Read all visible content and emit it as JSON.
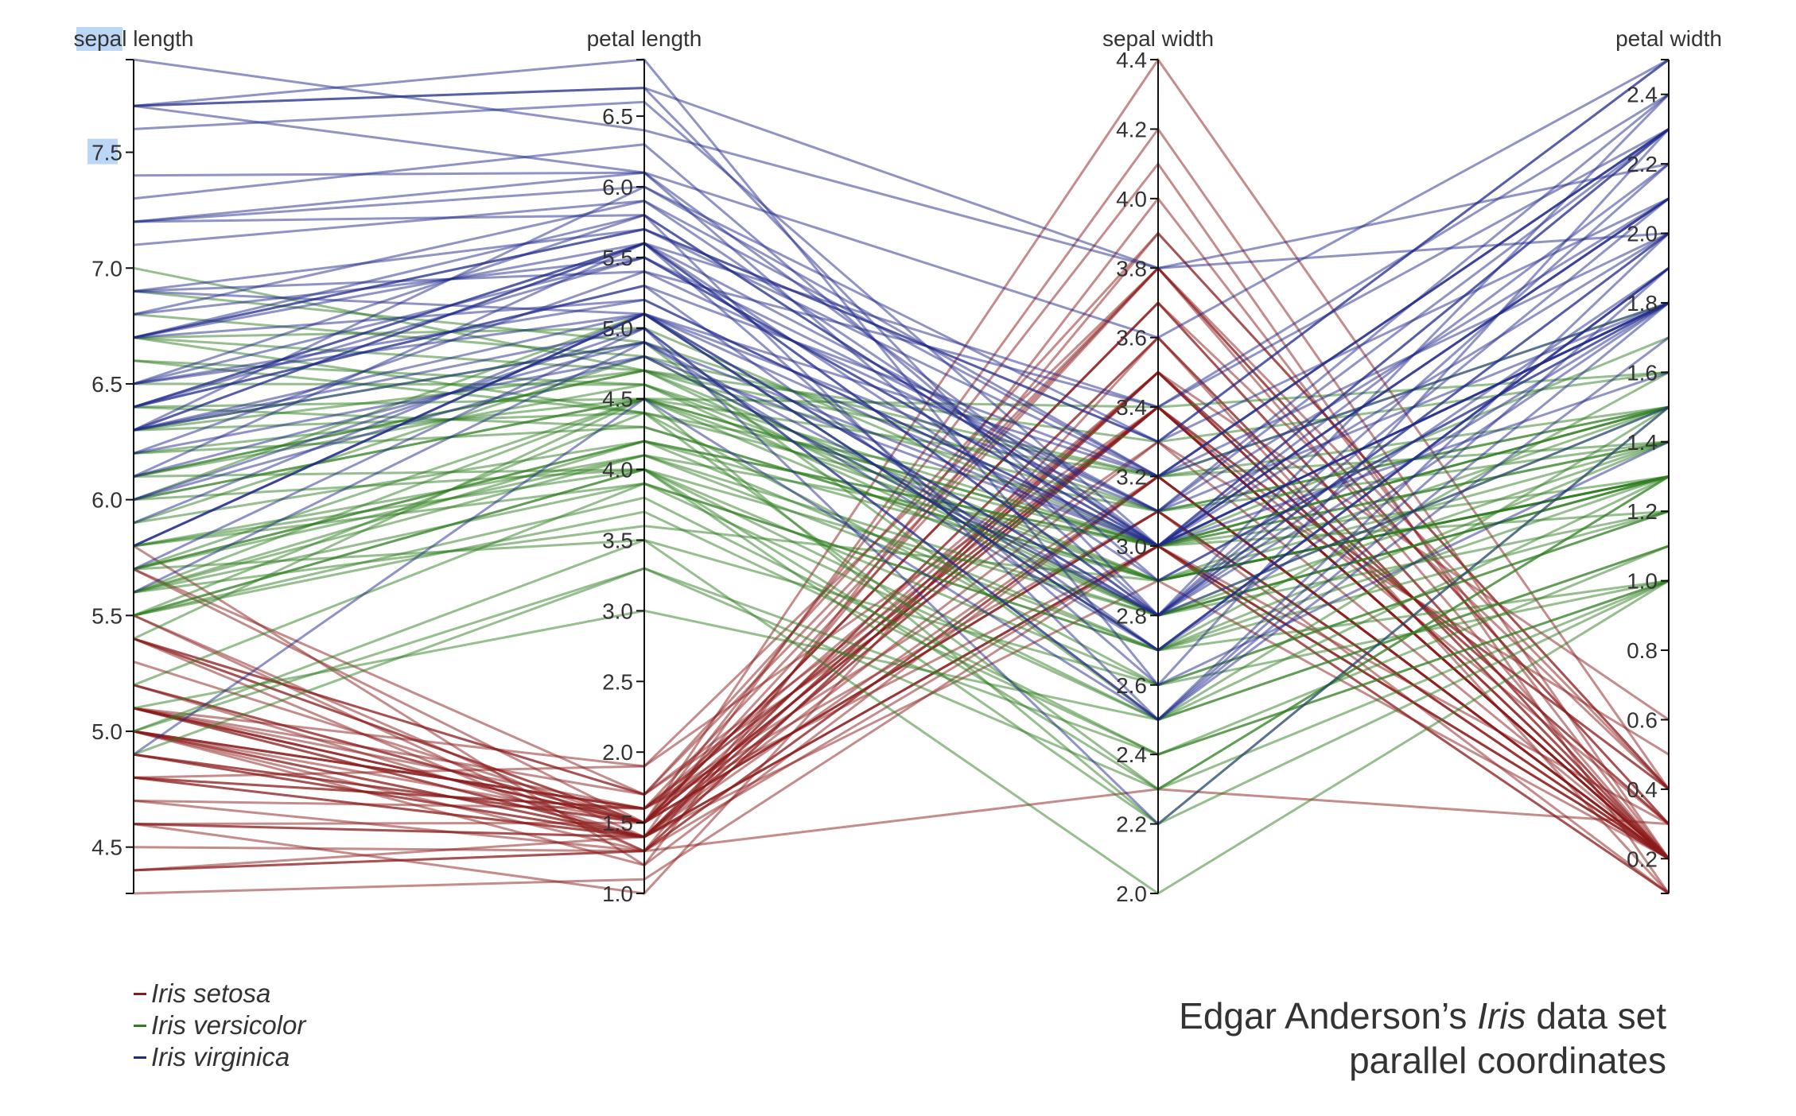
{
  "chart_data": {
    "type": "parallel-coordinates",
    "dimensions": [
      {
        "name": "sepal length",
        "label": "sepal length",
        "domain": [
          4.3,
          7.9
        ],
        "ticks": [
          "4.5",
          "5.0",
          "5.5",
          "6.0",
          "6.5",
          "7.0",
          "7.5"
        ]
      },
      {
        "name": "petal length",
        "label": "petal length",
        "domain": [
          1.0,
          6.9
        ],
        "ticks": [
          "1.0",
          "1.5",
          "2.0",
          "2.5",
          "3.0",
          "3.5",
          "4.0",
          "4.5",
          "5.0",
          "5.5",
          "6.0",
          "6.5"
        ]
      },
      {
        "name": "sepal width",
        "label": "sepal width",
        "domain": [
          2.0,
          4.4
        ],
        "ticks": [
          "2.0",
          "2.2",
          "2.4",
          "2.6",
          "2.8",
          "3.0",
          "3.2",
          "3.4",
          "3.6",
          "3.8",
          "4.0",
          "4.2",
          "4.4"
        ]
      },
      {
        "name": "petal width",
        "label": "petal width",
        "domain": [
          0.1,
          2.5
        ],
        "ticks": [
          "0.2",
          "0.4",
          "0.6",
          "0.8",
          "1.0",
          "1.2",
          "1.4",
          "1.6",
          "1.8",
          "2.0",
          "2.2",
          "2.4"
        ]
      }
    ],
    "series": [
      {
        "name": "Iris setosa",
        "color": "#8b1a1a",
        "values": [
          [
            5.1,
            1.4,
            3.5,
            0.2
          ],
          [
            4.9,
            1.4,
            3.0,
            0.2
          ],
          [
            4.7,
            1.3,
            3.2,
            0.2
          ],
          [
            4.6,
            1.5,
            3.1,
            0.2
          ],
          [
            5.0,
            1.4,
            3.6,
            0.2
          ],
          [
            5.4,
            1.7,
            3.9,
            0.4
          ],
          [
            4.6,
            1.4,
            3.4,
            0.3
          ],
          [
            5.0,
            1.5,
            3.4,
            0.2
          ],
          [
            4.4,
            1.4,
            2.9,
            0.2
          ],
          [
            4.9,
            1.5,
            3.1,
            0.1
          ],
          [
            5.4,
            1.5,
            3.7,
            0.2
          ],
          [
            4.8,
            1.6,
            3.4,
            0.2
          ],
          [
            4.8,
            1.4,
            3.0,
            0.1
          ],
          [
            4.3,
            1.1,
            3.0,
            0.1
          ],
          [
            5.8,
            1.2,
            4.0,
            0.2
          ],
          [
            5.7,
            1.5,
            4.4,
            0.4
          ],
          [
            5.4,
            1.3,
            3.9,
            0.4
          ],
          [
            5.1,
            1.4,
            3.5,
            0.3
          ],
          [
            5.7,
            1.7,
            3.8,
            0.3
          ],
          [
            5.1,
            1.5,
            3.8,
            0.3
          ],
          [
            5.4,
            1.7,
            3.4,
            0.2
          ],
          [
            5.1,
            1.5,
            3.7,
            0.4
          ],
          [
            4.6,
            1.0,
            3.6,
            0.2
          ],
          [
            5.1,
            1.7,
            3.3,
            0.5
          ],
          [
            4.8,
            1.9,
            3.4,
            0.2
          ],
          [
            5.0,
            1.6,
            3.0,
            0.2
          ],
          [
            5.0,
            1.6,
            3.4,
            0.4
          ],
          [
            5.2,
            1.5,
            3.5,
            0.2
          ],
          [
            5.2,
            1.4,
            3.4,
            0.2
          ],
          [
            4.7,
            1.6,
            3.2,
            0.2
          ],
          [
            4.8,
            1.6,
            3.1,
            0.2
          ],
          [
            5.4,
            1.5,
            3.4,
            0.4
          ],
          [
            5.2,
            1.5,
            4.1,
            0.1
          ],
          [
            5.5,
            1.4,
            4.2,
            0.2
          ],
          [
            4.9,
            1.5,
            3.1,
            0.2
          ],
          [
            5.0,
            1.2,
            3.2,
            0.2
          ],
          [
            5.5,
            1.3,
            3.5,
            0.2
          ],
          [
            4.9,
            1.4,
            3.6,
            0.1
          ],
          [
            4.4,
            1.3,
            3.0,
            0.2
          ],
          [
            5.1,
            1.5,
            3.4,
            0.2
          ],
          [
            5.0,
            1.3,
            3.5,
            0.3
          ],
          [
            4.5,
            1.3,
            2.3,
            0.3
          ],
          [
            4.4,
            1.3,
            3.2,
            0.2
          ],
          [
            5.0,
            1.6,
            3.5,
            0.6
          ],
          [
            5.1,
            1.9,
            3.8,
            0.4
          ],
          [
            4.8,
            1.4,
            3.0,
            0.3
          ],
          [
            5.1,
            1.6,
            3.8,
            0.2
          ],
          [
            4.6,
            1.4,
            3.2,
            0.2
          ],
          [
            5.3,
            1.5,
            3.7,
            0.2
          ],
          [
            5.0,
            1.4,
            3.3,
            0.2
          ]
        ]
      },
      {
        "name": "Iris versicolor",
        "color": "#2e7d1f",
        "values": [
          [
            7.0,
            4.7,
            3.2,
            1.4
          ],
          [
            6.4,
            4.5,
            3.2,
            1.5
          ],
          [
            6.9,
            4.9,
            3.1,
            1.5
          ],
          [
            5.5,
            4.0,
            2.3,
            1.3
          ],
          [
            6.5,
            4.6,
            2.8,
            1.5
          ],
          [
            5.7,
            4.5,
            2.8,
            1.3
          ],
          [
            6.3,
            4.7,
            3.3,
            1.6
          ],
          [
            4.9,
            3.3,
            2.4,
            1.0
          ],
          [
            6.6,
            4.6,
            2.9,
            1.3
          ],
          [
            5.2,
            3.9,
            2.7,
            1.4
          ],
          [
            5.0,
            3.5,
            2.0,
            1.0
          ],
          [
            5.9,
            4.2,
            3.0,
            1.5
          ],
          [
            6.0,
            4.0,
            2.2,
            1.0
          ],
          [
            6.1,
            4.7,
            2.9,
            1.4
          ],
          [
            5.6,
            3.6,
            2.9,
            1.3
          ],
          [
            6.7,
            4.4,
            3.1,
            1.4
          ],
          [
            5.6,
            4.5,
            3.0,
            1.5
          ],
          [
            5.8,
            4.1,
            2.7,
            1.0
          ],
          [
            6.2,
            4.5,
            2.2,
            1.5
          ],
          [
            5.6,
            3.9,
            2.5,
            1.1
          ],
          [
            5.9,
            4.8,
            3.2,
            1.8
          ],
          [
            6.1,
            4.0,
            2.8,
            1.3
          ],
          [
            6.3,
            4.9,
            2.5,
            1.5
          ],
          [
            6.1,
            4.7,
            2.8,
            1.2
          ],
          [
            6.4,
            4.3,
            2.9,
            1.3
          ],
          [
            6.6,
            4.4,
            3.0,
            1.4
          ],
          [
            6.8,
            4.8,
            2.8,
            1.4
          ],
          [
            6.7,
            5.0,
            3.0,
            1.7
          ],
          [
            6.0,
            4.5,
            2.9,
            1.5
          ],
          [
            5.7,
            3.5,
            2.6,
            1.0
          ],
          [
            5.5,
            3.8,
            2.4,
            1.1
          ],
          [
            5.5,
            3.7,
            2.4,
            1.0
          ],
          [
            5.8,
            3.9,
            2.7,
            1.2
          ],
          [
            6.0,
            5.1,
            2.7,
            1.6
          ],
          [
            5.4,
            4.5,
            3.0,
            1.5
          ],
          [
            6.0,
            4.5,
            3.4,
            1.6
          ],
          [
            6.7,
            4.7,
            3.1,
            1.5
          ],
          [
            6.3,
            4.4,
            2.3,
            1.3
          ],
          [
            5.6,
            4.1,
            3.0,
            1.3
          ],
          [
            5.5,
            4.0,
            2.5,
            1.3
          ],
          [
            5.5,
            4.4,
            2.6,
            1.2
          ],
          [
            6.1,
            4.6,
            3.0,
            1.4
          ],
          [
            5.8,
            4.0,
            2.6,
            1.2
          ],
          [
            5.0,
            3.3,
            2.3,
            1.0
          ],
          [
            5.6,
            4.2,
            2.7,
            1.3
          ],
          [
            5.7,
            4.2,
            3.0,
            1.2
          ],
          [
            5.7,
            4.2,
            2.9,
            1.3
          ],
          [
            6.2,
            4.3,
            2.9,
            1.3
          ],
          [
            5.1,
            3.0,
            2.5,
            1.1
          ],
          [
            5.7,
            4.1,
            2.8,
            1.3
          ]
        ]
      },
      {
        "name": "Iris virginica",
        "color": "#1f2a8c",
        "values": [
          [
            6.3,
            6.0,
            3.3,
            2.5
          ],
          [
            5.8,
            5.1,
            2.7,
            1.9
          ],
          [
            7.1,
            5.9,
            3.0,
            2.1
          ],
          [
            6.3,
            5.6,
            2.9,
            1.8
          ],
          [
            6.5,
            5.8,
            3.0,
            2.2
          ],
          [
            7.6,
            6.6,
            3.0,
            2.1
          ],
          [
            4.9,
            4.5,
            2.5,
            1.7
          ],
          [
            7.3,
            6.3,
            2.9,
            1.8
          ],
          [
            6.7,
            5.8,
            2.5,
            1.8
          ],
          [
            7.2,
            6.1,
            3.6,
            2.5
          ],
          [
            6.5,
            5.1,
            3.2,
            2.0
          ],
          [
            6.4,
            5.3,
            2.7,
            1.9
          ],
          [
            6.8,
            5.5,
            3.0,
            2.1
          ],
          [
            5.7,
            5.0,
            2.5,
            2.0
          ],
          [
            5.8,
            5.1,
            2.8,
            2.4
          ],
          [
            6.4,
            5.3,
            3.2,
            2.3
          ],
          [
            6.5,
            5.5,
            3.0,
            1.8
          ],
          [
            7.7,
            6.7,
            3.8,
            2.2
          ],
          [
            7.7,
            6.9,
            2.6,
            2.3
          ],
          [
            6.0,
            5.0,
            2.2,
            1.5
          ],
          [
            6.9,
            5.7,
            3.2,
            2.3
          ],
          [
            5.6,
            4.9,
            2.8,
            2.0
          ],
          [
            7.7,
            6.7,
            2.8,
            2.0
          ],
          [
            6.3,
            4.9,
            2.7,
            1.8
          ],
          [
            6.7,
            5.7,
            3.3,
            2.1
          ],
          [
            7.2,
            6.0,
            3.2,
            1.8
          ],
          [
            6.2,
            4.8,
            2.8,
            1.8
          ],
          [
            6.1,
            4.9,
            3.0,
            1.8
          ],
          [
            6.4,
            5.6,
            2.8,
            2.1
          ],
          [
            7.2,
            5.8,
            3.0,
            1.6
          ],
          [
            7.4,
            6.1,
            2.8,
            1.9
          ],
          [
            7.9,
            6.4,
            3.8,
            2.0
          ],
          [
            6.4,
            5.6,
            2.8,
            2.2
          ],
          [
            6.3,
            5.1,
            2.8,
            1.5
          ],
          [
            6.1,
            5.6,
            2.6,
            1.4
          ],
          [
            7.7,
            6.1,
            3.0,
            2.3
          ],
          [
            6.3,
            5.6,
            3.4,
            2.4
          ],
          [
            6.4,
            5.5,
            3.1,
            1.8
          ],
          [
            6.0,
            4.8,
            3.0,
            1.8
          ],
          [
            6.9,
            5.4,
            3.1,
            2.1
          ],
          [
            6.7,
            5.6,
            3.1,
            2.4
          ],
          [
            6.9,
            5.1,
            3.1,
            2.3
          ],
          [
            5.8,
            5.1,
            2.7,
            1.9
          ],
          [
            6.8,
            5.9,
            3.2,
            2.3
          ],
          [
            6.7,
            5.7,
            3.3,
            2.5
          ],
          [
            6.7,
            5.2,
            3.0,
            2.3
          ],
          [
            6.3,
            5.0,
            2.5,
            1.9
          ],
          [
            6.5,
            5.2,
            3.0,
            2.0
          ],
          [
            6.2,
            5.4,
            3.4,
            2.3
          ],
          [
            5.9,
            5.1,
            3.0,
            1.8
          ]
        ]
      }
    ],
    "legend": [
      "Iris setosa",
      "Iris versicolor",
      "Iris virginica"
    ],
    "legend_position": "bottom-left"
  },
  "caption": {
    "line1_prefix": "Edgar Anderson’s ",
    "line1_italic": "Iris",
    "line1_suffix": " data set",
    "line2": "parallel coordinates"
  }
}
